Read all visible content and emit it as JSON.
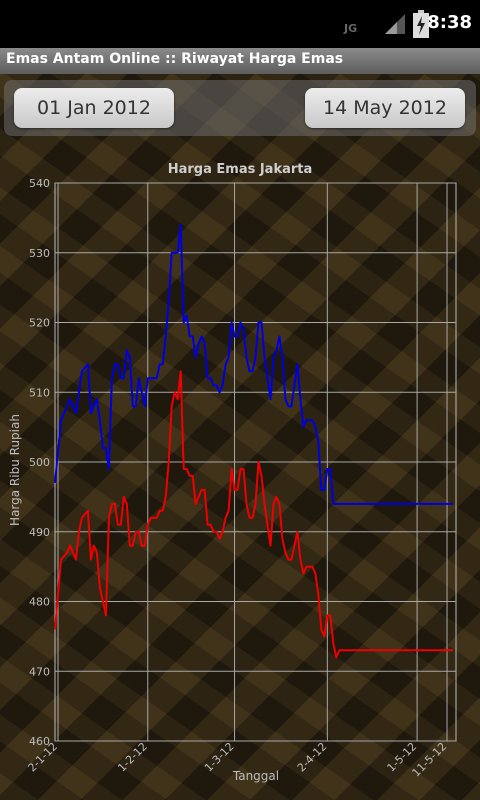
{
  "status_bar": {
    "left_icon_text": "JG",
    "time": "8:38",
    "icons": [
      "signal-icon",
      "battery-charging-icon"
    ]
  },
  "title_bar": {
    "title": "Emas Antam Online :: Riwayat Harga Emas"
  },
  "date_range": {
    "start": "01 Jan 2012",
    "end": "14 May 2012"
  },
  "chart_data": {
    "type": "line",
    "title": "Harga Emas Jakarta",
    "xlabel": "Tanggal",
    "ylabel": "Harga Ribu Rupiah",
    "ylim": [
      460,
      540
    ],
    "yticks": [
      460,
      470,
      480,
      490,
      500,
      510,
      520,
      530,
      540
    ],
    "xlim": [
      0,
      134
    ],
    "xticks": [
      {
        "x": 1,
        "label": "2-1-12"
      },
      {
        "x": 31,
        "label": "1-2-12"
      },
      {
        "x": 60,
        "label": "1-3-12"
      },
      {
        "x": 91,
        "label": "2-4-12"
      },
      {
        "x": 121,
        "label": "1-5-12"
      },
      {
        "x": 131,
        "label": "11-5-12"
      }
    ],
    "grid": true,
    "series": [
      {
        "color": "#0000dd",
        "x": [
          0,
          2,
          4,
          5,
          7,
          8,
          9,
          11,
          12,
          13,
          14,
          15,
          16,
          17,
          18,
          19,
          20,
          21,
          22,
          23,
          24,
          25,
          26,
          27,
          28,
          29,
          30,
          31,
          32,
          34,
          35,
          36,
          37,
          38,
          39,
          40,
          41,
          42,
          43,
          44,
          45,
          46,
          47,
          48,
          49,
          50,
          51,
          52,
          53,
          54,
          55,
          56,
          57,
          58,
          59,
          60,
          61,
          62,
          63,
          64,
          65,
          66,
          67,
          68,
          69,
          70,
          71,
          72,
          73,
          74,
          75,
          76,
          77,
          78,
          79,
          80,
          81,
          82,
          83,
          84,
          85,
          86,
          87,
          88,
          89,
          90,
          91,
          92,
          93,
          94,
          95,
          96,
          97,
          98,
          99,
          100,
          101,
          102,
          103,
          104,
          105,
          106,
          107,
          108,
          109,
          110,
          111,
          112,
          113,
          114,
          115,
          116,
          117,
          118,
          119,
          120,
          121,
          122,
          123,
          124,
          125,
          126,
          127,
          128,
          129,
          130,
          131,
          132,
          133
        ],
        "values": [
          497,
          506,
          508,
          509,
          507,
          510,
          513,
          514,
          507,
          508,
          509,
          506,
          502,
          502,
          499,
          512,
          514,
          514,
          512,
          512,
          516,
          515,
          508,
          508,
          512,
          510,
          508,
          512,
          512,
          512,
          514,
          514,
          518,
          523,
          530,
          530,
          530,
          534,
          520,
          521,
          518,
          518,
          515,
          517,
          518,
          517,
          512,
          512,
          511,
          511,
          510,
          511,
          514,
          515,
          520,
          518,
          518,
          520,
          519,
          515,
          513,
          513,
          515,
          520,
          520,
          515,
          512,
          509,
          515,
          516,
          518,
          515,
          509,
          508,
          508,
          511,
          514,
          509,
          505,
          506,
          506,
          506,
          505,
          503,
          496,
          496,
          499,
          499,
          494,
          494,
          494,
          494,
          494,
          494,
          494,
          494,
          494,
          494,
          494,
          494,
          494,
          494,
          494,
          494,
          494,
          494,
          494,
          494,
          494,
          494,
          494,
          494,
          494,
          494,
          494,
          494,
          494,
          494,
          494,
          494,
          494,
          494,
          494,
          494,
          494,
          494,
          494,
          494,
          494
        ]
      },
      {
        "color": "#ee0000",
        "x": [
          0,
          2,
          4,
          5,
          7,
          8,
          9,
          11,
          12,
          13,
          14,
          15,
          16,
          17,
          18,
          19,
          20,
          21,
          22,
          23,
          24,
          25,
          26,
          27,
          28,
          29,
          30,
          31,
          32,
          34,
          35,
          36,
          37,
          38,
          39,
          40,
          41,
          42,
          43,
          44,
          45,
          46,
          47,
          48,
          49,
          50,
          51,
          52,
          53,
          54,
          55,
          56,
          57,
          58,
          59,
          60,
          61,
          62,
          63,
          64,
          65,
          66,
          67,
          68,
          69,
          70,
          71,
          72,
          73,
          74,
          75,
          76,
          77,
          78,
          79,
          80,
          81,
          82,
          83,
          84,
          85,
          86,
          87,
          88,
          89,
          90,
          91,
          92,
          93,
          94,
          95,
          96,
          97,
          98,
          99,
          100,
          101,
          102,
          103,
          104,
          105,
          106,
          107,
          108,
          109,
          110,
          111,
          112,
          113,
          114,
          115,
          116,
          117,
          118,
          119,
          120,
          121,
          122,
          123,
          124,
          125,
          126,
          127,
          128,
          129,
          130,
          131,
          132,
          133
        ],
        "values": [
          476,
          486,
          487,
          488,
          486,
          490,
          492,
          493,
          486,
          488,
          487,
          482,
          480,
          478,
          492,
          494,
          494,
          491,
          491,
          495,
          494,
          488,
          488,
          490,
          490,
          488,
          488,
          491,
          492,
          492,
          493,
          493,
          495,
          500,
          508,
          510,
          509,
          513,
          499,
          499,
          498,
          498,
          494,
          495,
          496,
          496,
          491,
          491,
          490,
          490,
          489,
          490,
          492,
          493,
          499,
          496,
          496,
          499,
          499,
          494,
          492,
          492,
          494,
          500,
          498,
          494,
          491,
          488,
          494,
          495,
          494,
          489,
          487,
          486,
          486,
          488,
          490,
          486,
          484,
          485,
          485,
          485,
          484,
          481,
          476,
          475,
          478,
          478,
          474,
          472,
          473,
          473,
          473,
          473,
          473,
          473,
          473,
          473,
          473,
          473,
          473,
          473,
          473,
          473,
          473,
          473,
          473,
          473,
          473,
          473,
          473,
          473,
          473,
          473,
          473,
          473,
          473,
          473,
          473,
          473,
          473,
          473,
          473,
          473,
          473,
          473,
          473,
          473,
          473
        ]
      }
    ]
  }
}
